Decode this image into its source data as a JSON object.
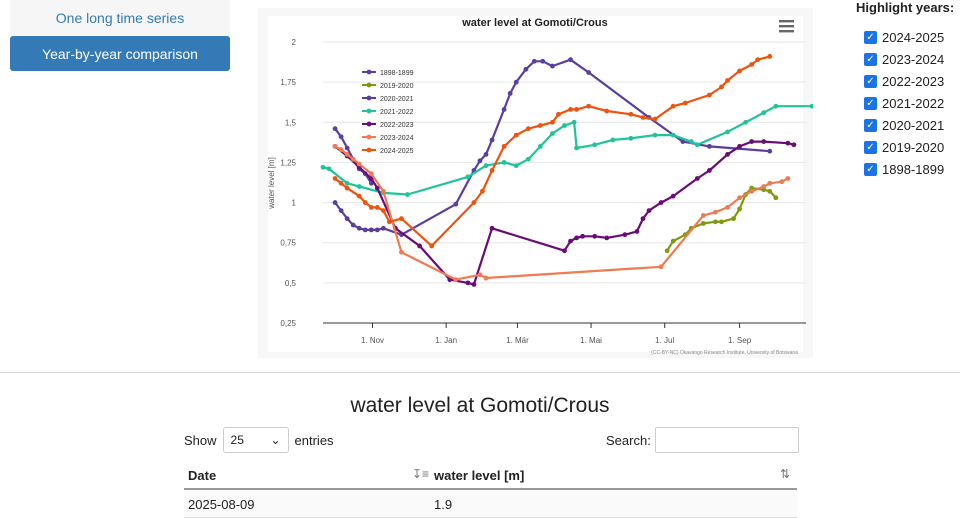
{
  "nav": {
    "long_series_label": "One long time series",
    "comparison_label": "Year-by-year comparison"
  },
  "highlight": {
    "title": "Highlight years:",
    "items": [
      "2024-2025",
      "2023-2024",
      "2022-2023",
      "2021-2022",
      "2020-2021",
      "2019-2020",
      "1898-1899"
    ]
  },
  "chart_data": {
    "type": "line",
    "title": "water level at Gomoti/Crous",
    "ylabel": "water level [m]",
    "ylim": [
      0.25,
      2
    ],
    "y_ticks": [
      "0,25",
      "0,5",
      "0,75",
      "1",
      "1,25",
      "1,5",
      "1,75",
      "2"
    ],
    "x_ticks": [
      {
        "label": "1. Nov",
        "x": 31
      },
      {
        "label": "1. Jan",
        "x": 92
      },
      {
        "label": "1. Mär",
        "x": 151
      },
      {
        "label": "1. Mai",
        "x": 212
      },
      {
        "label": "1. Jul",
        "x": 273
      },
      {
        "label": "1. Sep",
        "x": 335
      }
    ],
    "credit": "(CC-BY-NC) Okavango Research Institute, University of Botswana",
    "menu_icon": "hamburger-icon",
    "series": [
      {
        "name": "1898-1899",
        "color": "#5b3fa0",
        "points": [
          [
            0,
            1.0
          ],
          [
            5,
            0.95
          ],
          [
            10,
            0.9
          ],
          [
            15,
            0.86
          ],
          [
            20,
            0.84
          ],
          [
            25,
            0.83
          ],
          [
            30,
            0.83
          ],
          [
            35,
            0.83
          ],
          [
            40,
            0.84
          ],
          [
            55,
            0.8
          ],
          [
            100,
            0.99
          ],
          [
            115,
            1.2
          ],
          [
            120,
            1.26
          ],
          [
            125,
            1.3
          ],
          [
            130,
            1.39
          ],
          [
            140,
            1.58
          ],
          [
            145,
            1.68
          ],
          [
            150,
            1.75
          ],
          [
            158,
            1.83
          ],
          [
            165,
            1.88
          ],
          [
            172,
            1.88
          ],
          [
            180,
            1.85
          ],
          [
            195,
            1.89
          ],
          [
            210,
            1.81
          ],
          [
            260,
            1.53
          ],
          [
            288,
            1.38
          ],
          [
            310,
            1.35
          ],
          [
            360,
            1.32
          ]
        ]
      },
      {
        "name": "2019-2020",
        "color": "#7f9a0d",
        "points": [
          [
            275,
            0.7
          ],
          [
            280,
            0.76
          ],
          [
            290,
            0.8
          ],
          [
            295,
            0.84
          ],
          [
            305,
            0.87
          ],
          [
            315,
            0.88
          ],
          [
            320,
            0.88
          ],
          [
            330,
            0.9
          ],
          [
            335,
            0.96
          ],
          [
            340,
            1.05
          ],
          [
            345,
            1.09
          ],
          [
            355,
            1.08
          ],
          [
            360,
            1.07
          ],
          [
            365,
            1.03
          ]
        ]
      },
      {
        "name": "2020-2021",
        "color": "#5b3fa0",
        "points": [
          [
            0,
            1.46
          ],
          [
            5,
            1.41
          ],
          [
            10,
            1.34
          ],
          [
            15,
            1.27
          ],
          [
            20,
            1.21
          ],
          [
            25,
            1.18
          ],
          [
            30,
            1.12
          ]
        ]
      },
      {
        "name": "2021-2022",
        "color": "#1fc49a",
        "points": [
          [
            -10,
            1.22
          ],
          [
            -5,
            1.21
          ],
          [
            10,
            1.12
          ],
          [
            20,
            1.1
          ],
          [
            40,
            1.06
          ],
          [
            60,
            1.05
          ],
          [
            110,
            1.16
          ],
          [
            125,
            1.23
          ],
          [
            140,
            1.25
          ],
          [
            150,
            1.23
          ],
          [
            160,
            1.27
          ],
          [
            170,
            1.35
          ],
          [
            180,
            1.43
          ],
          [
            190,
            1.48
          ],
          [
            198,
            1.5
          ],
          [
            200,
            1.34
          ],
          [
            215,
            1.36
          ],
          [
            230,
            1.39
          ],
          [
            245,
            1.4
          ],
          [
            265,
            1.42
          ],
          [
            280,
            1.42
          ],
          [
            295,
            1.38
          ],
          [
            300,
            1.36
          ],
          [
            325,
            1.44
          ],
          [
            340,
            1.5
          ],
          [
            355,
            1.56
          ],
          [
            365,
            1.6
          ],
          [
            395,
            1.6
          ],
          [
            435,
            1.6
          ]
        ]
      },
      {
        "name": "2022-2023",
        "color": "#6a0c78",
        "points": [
          [
            0,
            1.35
          ],
          [
            10,
            1.29
          ],
          [
            20,
            1.22
          ],
          [
            30,
            1.15
          ],
          [
            35,
            1.09
          ],
          [
            50,
            0.84
          ],
          [
            70,
            0.73
          ],
          [
            95,
            0.52
          ],
          [
            110,
            0.5
          ],
          [
            115,
            0.49
          ],
          [
            130,
            0.84
          ],
          [
            190,
            0.7
          ],
          [
            195,
            0.76
          ],
          [
            200,
            0.78
          ],
          [
            205,
            0.79
          ],
          [
            215,
            0.79
          ],
          [
            225,
            0.78
          ],
          [
            240,
            0.8
          ],
          [
            250,
            0.82
          ],
          [
            255,
            0.9
          ],
          [
            260,
            0.95
          ],
          [
            270,
            1.0
          ],
          [
            280,
            1.04
          ],
          [
            300,
            1.15
          ],
          [
            310,
            1.2
          ],
          [
            325,
            1.3
          ],
          [
            335,
            1.35
          ],
          [
            345,
            1.38
          ],
          [
            355,
            1.38
          ],
          [
            375,
            1.37
          ],
          [
            380,
            1.36
          ]
        ]
      },
      {
        "name": "2023-2024",
        "color": "#f07a52",
        "points": [
          [
            0,
            1.35
          ],
          [
            5,
            1.33
          ],
          [
            10,
            1.3
          ],
          [
            15,
            1.27
          ],
          [
            20,
            1.24
          ],
          [
            30,
            1.18
          ],
          [
            40,
            1.07
          ],
          [
            55,
            0.69
          ],
          [
            100,
            0.52
          ],
          [
            120,
            0.55
          ],
          [
            125,
            0.53
          ],
          [
            270,
            0.6
          ],
          [
            305,
            0.92
          ],
          [
            315,
            0.94
          ],
          [
            325,
            0.97
          ],
          [
            335,
            1.03
          ],
          [
            345,
            1.07
          ],
          [
            355,
            1.1
          ],
          [
            360,
            1.12
          ],
          [
            370,
            1.13
          ],
          [
            375,
            1.15
          ]
        ]
      },
      {
        "name": "2024-2025",
        "color": "#f0530e",
        "points": [
          [
            0,
            1.15
          ],
          [
            5,
            1.12
          ],
          [
            10,
            1.09
          ],
          [
            20,
            1.04
          ],
          [
            25,
            1.0
          ],
          [
            30,
            0.97
          ],
          [
            35,
            0.97
          ],
          [
            40,
            0.95
          ],
          [
            45,
            0.88
          ],
          [
            55,
            0.9
          ],
          [
            80,
            0.73
          ],
          [
            115,
            1.0
          ],
          [
            122,
            1.07
          ],
          [
            130,
            1.2
          ],
          [
            140,
            1.35
          ],
          [
            150,
            1.42
          ],
          [
            160,
            1.46
          ],
          [
            170,
            1.48
          ],
          [
            180,
            1.5
          ],
          [
            185,
            1.55
          ],
          [
            195,
            1.58
          ],
          [
            200,
            1.58
          ],
          [
            210,
            1.6
          ],
          [
            225,
            1.57
          ],
          [
            245,
            1.55
          ],
          [
            255,
            1.53
          ],
          [
            265,
            1.52
          ],
          [
            280,
            1.6
          ],
          [
            290,
            1.62
          ],
          [
            310,
            1.67
          ],
          [
            320,
            1.72
          ],
          [
            325,
            1.76
          ],
          [
            335,
            1.82
          ],
          [
            345,
            1.86
          ],
          [
            350,
            1.89
          ],
          [
            360,
            1.91
          ]
        ]
      }
    ]
  },
  "table": {
    "title": "water level at Gomoti/Crous",
    "show_label": "Show",
    "entries_value": "25",
    "entries_label": "entries",
    "search_label": "Search:",
    "columns": [
      "Date",
      "water level [m]"
    ],
    "rows": [
      [
        "2025-08-09",
        "1.9"
      ]
    ]
  }
}
